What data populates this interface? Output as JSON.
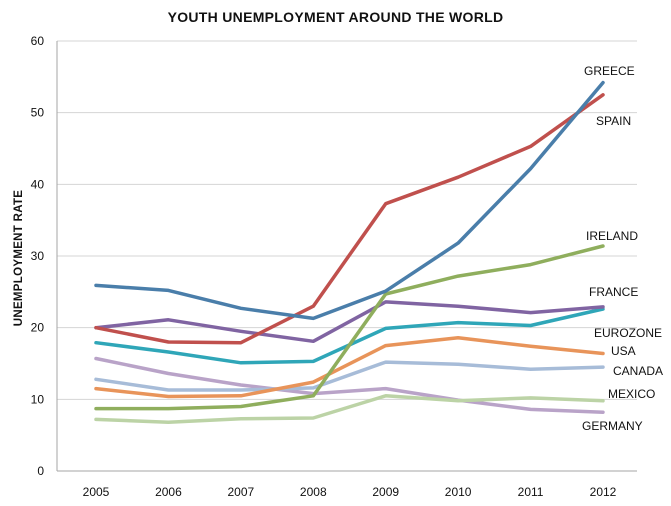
{
  "chart_data": {
    "type": "line",
    "title": "YOUTH UNEMPLOYMENT AROUND THE WORLD",
    "xlabel": "",
    "ylabel": "UNEMPLOYMENT RATE",
    "ylim": [
      0,
      60
    ],
    "yticks": [
      0,
      10,
      20,
      30,
      40,
      50,
      60
    ],
    "grid": true,
    "legend": "none (series labeled at line ends)",
    "categories": [
      "2005",
      "2006",
      "2007",
      "2008",
      "2009",
      "2010",
      "2011",
      "2012"
    ],
    "series": [
      {
        "name": "GREECE",
        "color": "#4a7eaa",
        "values": [
          25.9,
          25.2,
          22.7,
          21.3,
          25.1,
          31.8,
          42.2,
          54.2
        ]
      },
      {
        "name": "SPAIN",
        "color": "#c0504d",
        "values": [
          20.0,
          18.0,
          17.9,
          23.0,
          37.3,
          41.0,
          45.3,
          52.5
        ]
      },
      {
        "name": "IRELAND",
        "color": "#8fae5d",
        "values": [
          8.7,
          8.7,
          9.0,
          10.5,
          24.7,
          27.2,
          28.8,
          31.4
        ]
      },
      {
        "name": "FRANCE",
        "color": "#8064a2",
        "values": [
          20.0,
          21.1,
          19.5,
          18.1,
          23.6,
          23.0,
          22.1,
          22.9
        ]
      },
      {
        "name": "EUROZONE",
        "color": "#2fa6b8",
        "values": [
          17.9,
          16.6,
          15.1,
          15.3,
          19.9,
          20.7,
          20.3,
          22.6
        ]
      },
      {
        "name": "USA",
        "color": "#e8945a",
        "values": [
          11.5,
          10.4,
          10.5,
          12.4,
          17.5,
          18.6,
          17.4,
          16.4
        ]
      },
      {
        "name": "CANADA",
        "color": "#a7bcd8",
        "values": [
          12.8,
          11.3,
          11.3,
          11.6,
          15.2,
          14.9,
          14.2,
          14.5
        ]
      },
      {
        "name": "MEXICO",
        "color": "#bcd3a6",
        "values": [
          7.2,
          6.8,
          7.3,
          7.4,
          10.5,
          9.8,
          10.2,
          9.8
        ]
      },
      {
        "name": "GERMANY",
        "color": "#b9a3c8",
        "values": [
          15.7,
          13.6,
          12.0,
          10.8,
          11.5,
          9.9,
          8.6,
          8.2
        ]
      }
    ]
  }
}
